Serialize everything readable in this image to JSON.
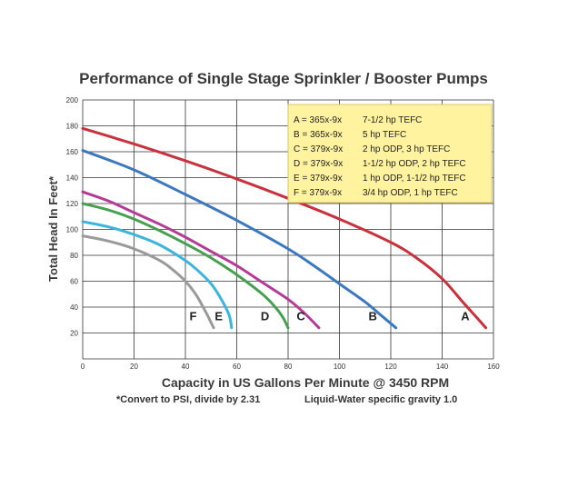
{
  "chart_data": {
    "type": "line",
    "title": "Performance of Single Stage Sprinkler / Booster Pumps",
    "xlabel": "Capacity in US Gallons Per Minute @ 3450 RPM",
    "ylabel": "Total Head In Feet*",
    "xlim": [
      0,
      160
    ],
    "ylim": [
      0,
      200
    ],
    "x_ticks": [
      "0",
      "20",
      "40",
      "60",
      "80",
      "100",
      "120",
      "140",
      "160"
    ],
    "y_ticks": [
      "20",
      "40",
      "60",
      "80",
      "100",
      "120",
      "140",
      "160",
      "180",
      "200"
    ],
    "grid": true,
    "legend_position": "top-right",
    "legend": [
      {
        "key": "A",
        "model": "A = 365x-9x",
        "rating": "7-1/2 hp TEFC"
      },
      {
        "key": "B",
        "model": "B = 365x-9x",
        "rating": "5 hp TEFC"
      },
      {
        "key": "C",
        "model": "C = 379x-9x",
        "rating": "2 hp ODP, 3 hp TEFC"
      },
      {
        "key": "D",
        "model": "D = 379x-9x",
        "rating": "1-1/2 hp ODP, 2 hp TEFC"
      },
      {
        "key": "E",
        "model": "E = 379x-9x",
        "rating": "1 hp ODP, 1-1/2 hp TEFC"
      },
      {
        "key": "F",
        "model": "F = 379x-9x",
        "rating": "3/4 hp ODP, 1 hp TEFC"
      }
    ],
    "series": [
      {
        "name": "A",
        "color": "#c8323c",
        "points": [
          [
            0,
            178
          ],
          [
            20,
            166
          ],
          [
            40,
            153
          ],
          [
            60,
            139
          ],
          [
            80,
            124
          ],
          [
            100,
            108
          ],
          [
            120,
            90
          ],
          [
            130,
            78
          ],
          [
            140,
            62
          ],
          [
            148,
            44
          ],
          [
            153,
            33
          ],
          [
            157,
            24
          ]
        ]
      },
      {
        "name": "B",
        "color": "#3c78c0",
        "points": [
          [
            0,
            161
          ],
          [
            20,
            146
          ],
          [
            40,
            127
          ],
          [
            60,
            107
          ],
          [
            80,
            85
          ],
          [
            90,
            72
          ],
          [
            100,
            58
          ],
          [
            110,
            44
          ],
          [
            116,
            34
          ],
          [
            122,
            24
          ]
        ]
      },
      {
        "name": "C",
        "color": "#b43c96",
        "points": [
          [
            0,
            129
          ],
          [
            10,
            122
          ],
          [
            20,
            113
          ],
          [
            30,
            104
          ],
          [
            40,
            94
          ],
          [
            50,
            83
          ],
          [
            60,
            72
          ],
          [
            70,
            59
          ],
          [
            80,
            46
          ],
          [
            86,
            36
          ],
          [
            92,
            24
          ]
        ]
      },
      {
        "name": "D",
        "color": "#46a050",
        "points": [
          [
            0,
            120
          ],
          [
            10,
            115
          ],
          [
            20,
            108
          ],
          [
            30,
            99
          ],
          [
            40,
            89
          ],
          [
            50,
            78
          ],
          [
            60,
            65
          ],
          [
            70,
            50
          ],
          [
            75,
            40
          ],
          [
            78,
            32
          ],
          [
            80,
            24
          ]
        ]
      },
      {
        "name": "E",
        "color": "#3cb4dc",
        "points": [
          [
            0,
            106
          ],
          [
            10,
            102
          ],
          [
            20,
            96
          ],
          [
            30,
            88
          ],
          [
            40,
            76
          ],
          [
            45,
            68
          ],
          [
            50,
            58
          ],
          [
            54,
            46
          ],
          [
            57,
            34
          ],
          [
            58,
            24
          ]
        ]
      },
      {
        "name": "F",
        "color": "#9a9a9a",
        "points": [
          [
            0,
            95
          ],
          [
            10,
            91
          ],
          [
            20,
            85
          ],
          [
            30,
            76
          ],
          [
            35,
            69
          ],
          [
            40,
            60
          ],
          [
            44,
            50
          ],
          [
            48,
            36
          ],
          [
            50,
            28
          ],
          [
            51,
            24
          ]
        ]
      }
    ],
    "curve_labels": [
      {
        "text": "A",
        "x": 149,
        "y": 30
      },
      {
        "text": "B",
        "x": 113,
        "y": 30
      },
      {
        "text": "C",
        "x": 85,
        "y": 30
      },
      {
        "text": "D",
        "x": 71,
        "y": 30
      },
      {
        "text": "E",
        "x": 53,
        "y": 30
      },
      {
        "text": "F",
        "x": 43,
        "y": 30
      }
    ]
  },
  "footnotes": {
    "conversion": "*Convert to PSI, divide by 2.31",
    "gravity": "Liquid-Water specific gravity 1.0"
  },
  "colors": {
    "grid": "#333333",
    "legend_bg": "#fff3a0",
    "legend_border": "#d8c860"
  }
}
